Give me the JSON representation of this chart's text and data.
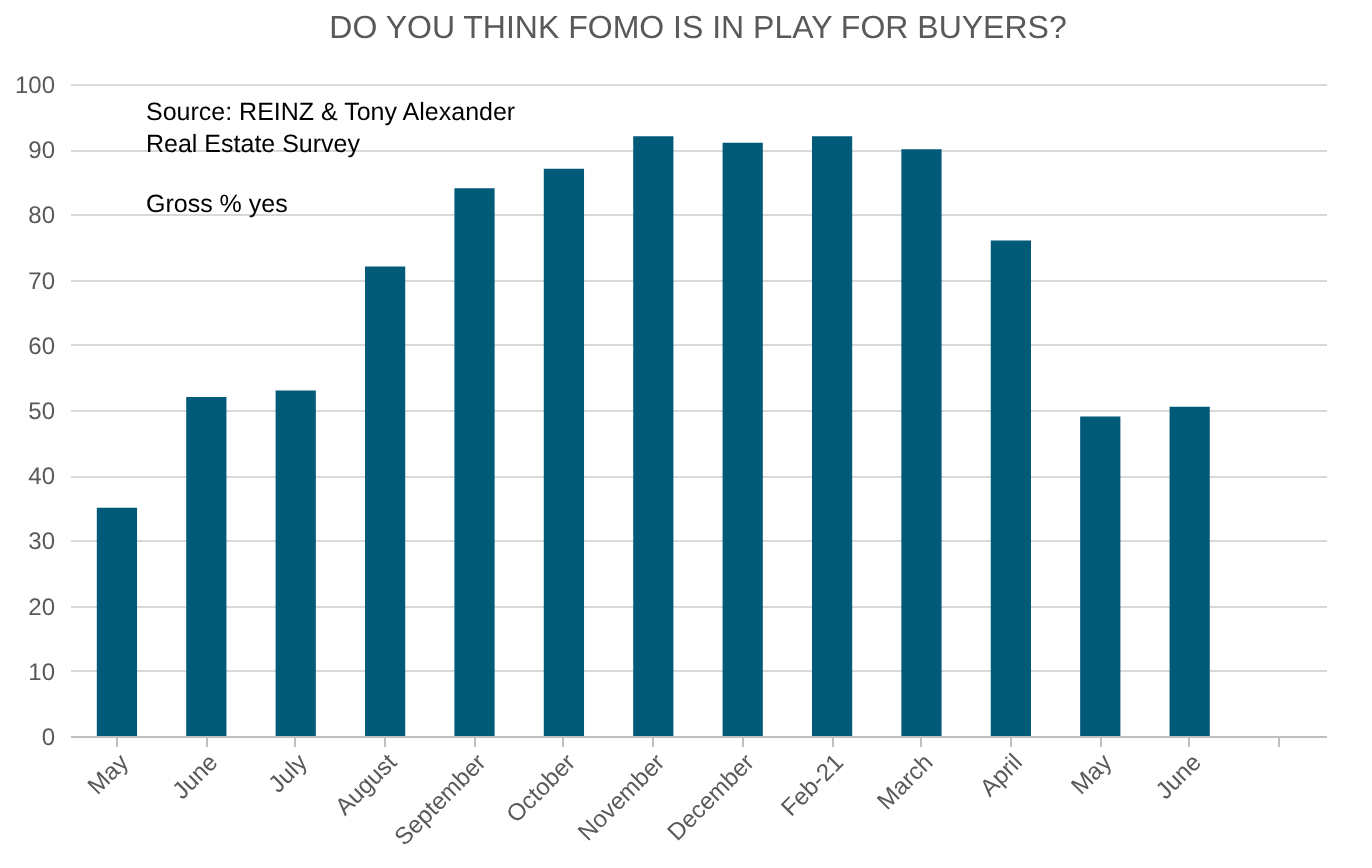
{
  "chart_data": {
    "type": "bar",
    "title": "DO YOU THINK FOMO IS IN PLAY FOR BUYERS?",
    "categories": [
      "May",
      "June",
      "July",
      "August",
      "September",
      "October",
      "November",
      "December",
      "Feb-21",
      "March",
      "April",
      "May",
      "June",
      null
    ],
    "values": [
      35,
      52,
      53,
      72,
      84,
      87,
      92,
      91,
      92,
      90,
      76,
      49,
      50.5,
      null
    ],
    "color": "#005a78",
    "ylim": [
      0,
      100
    ],
    "yticks": [
      0,
      10,
      20,
      30,
      40,
      50,
      60,
      70,
      80,
      90,
      100
    ],
    "grid": "y",
    "annotations": [
      "Source: REINZ & Tony Alexander Real Estate Survey",
      "Gross % yes"
    ]
  }
}
